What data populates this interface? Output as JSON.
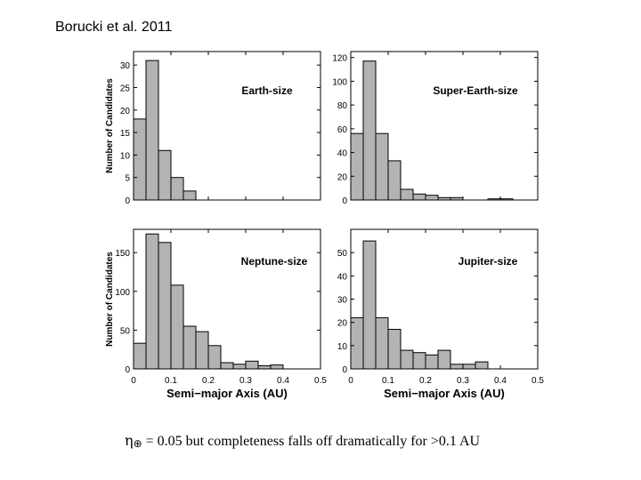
{
  "page": {
    "title": "Borucki et al. 2011",
    "caption_symbol": "η",
    "caption_subscript": "⊕",
    "caption_text": "= 0.05 but completeness falls off dramatically for >0.1 AU"
  },
  "colors": {
    "bar_fill": "#b3b3b3",
    "bar_stroke": "#000000",
    "axis": "#000000"
  },
  "chart_data": [
    {
      "type": "bar",
      "title": "Earth-size",
      "bin_width": 0.0333,
      "x": [
        0.0167,
        0.05,
        0.0833,
        0.1167,
        0.15
      ],
      "values": [
        18,
        31,
        11,
        5,
        2
      ],
      "xlim": [
        0,
        0.5
      ],
      "ylim": [
        0,
        33
      ],
      "yticks": [
        0,
        5,
        10,
        15,
        20,
        25,
        30
      ],
      "xticks": [],
      "ylabel": "Number of Candidates",
      "xlabel": ""
    },
    {
      "type": "bar",
      "title": "Super-Earth-size",
      "bin_width": 0.0333,
      "x": [
        0.0167,
        0.05,
        0.0833,
        0.1167,
        0.15,
        0.1833,
        0.2167,
        0.25,
        0.2833,
        0.3167,
        0.35,
        0.3833,
        0.4167,
        0.45
      ],
      "values": [
        56,
        117,
        56,
        33,
        9,
        5,
        4,
        2,
        2,
        0,
        0,
        1,
        1,
        0
      ],
      "xlim": [
        0,
        0.5
      ],
      "ylim": [
        0,
        125
      ],
      "yticks": [
        0,
        20,
        40,
        60,
        80,
        100,
        120
      ],
      "xticks": [],
      "ylabel": "",
      "xlabel": ""
    },
    {
      "type": "bar",
      "title": "Neptune-size",
      "bin_width": 0.0333,
      "x": [
        0.0167,
        0.05,
        0.0833,
        0.1167,
        0.15,
        0.1833,
        0.2167,
        0.25,
        0.2833,
        0.3167,
        0.35,
        0.3833,
        0.4167,
        0.45
      ],
      "values": [
        33,
        174,
        163,
        108,
        55,
        48,
        30,
        8,
        6,
        10,
        4,
        5,
        0,
        0
      ],
      "xlim": [
        0,
        0.5
      ],
      "ylim": [
        0,
        180
      ],
      "yticks": [
        0,
        50,
        100,
        150
      ],
      "xticks": [
        "0",
        "0.1",
        "0.2",
        "0.3",
        "0.4",
        "0.5"
      ],
      "xtick_values": [
        0,
        0.1,
        0.2,
        0.3,
        0.4,
        0.5
      ],
      "ylabel": "Number of Candidates",
      "xlabel": "Semi−major Axis (AU)"
    },
    {
      "type": "bar",
      "title": "Jupiter-size",
      "bin_width": 0.0333,
      "x": [
        0.0167,
        0.05,
        0.0833,
        0.1167,
        0.15,
        0.1833,
        0.2167,
        0.25,
        0.2833,
        0.3167,
        0.35,
        0.3833,
        0.4167
      ],
      "values": [
        22,
        55,
        22,
        17,
        8,
        7,
        6,
        8,
        2,
        2,
        3,
        0,
        0
      ],
      "xlim": [
        0,
        0.5
      ],
      "ylim": [
        0,
        60
      ],
      "yticks": [
        0,
        10,
        20,
        30,
        40,
        50
      ],
      "xticks": [
        "0",
        "0.1",
        "0.2",
        "0.3",
        "0.4",
        "0.5"
      ],
      "xtick_values": [
        0,
        0.1,
        0.2,
        0.3,
        0.4,
        0.5
      ],
      "ylabel": "",
      "xlabel": "Semi−major Axis (AU)"
    }
  ]
}
